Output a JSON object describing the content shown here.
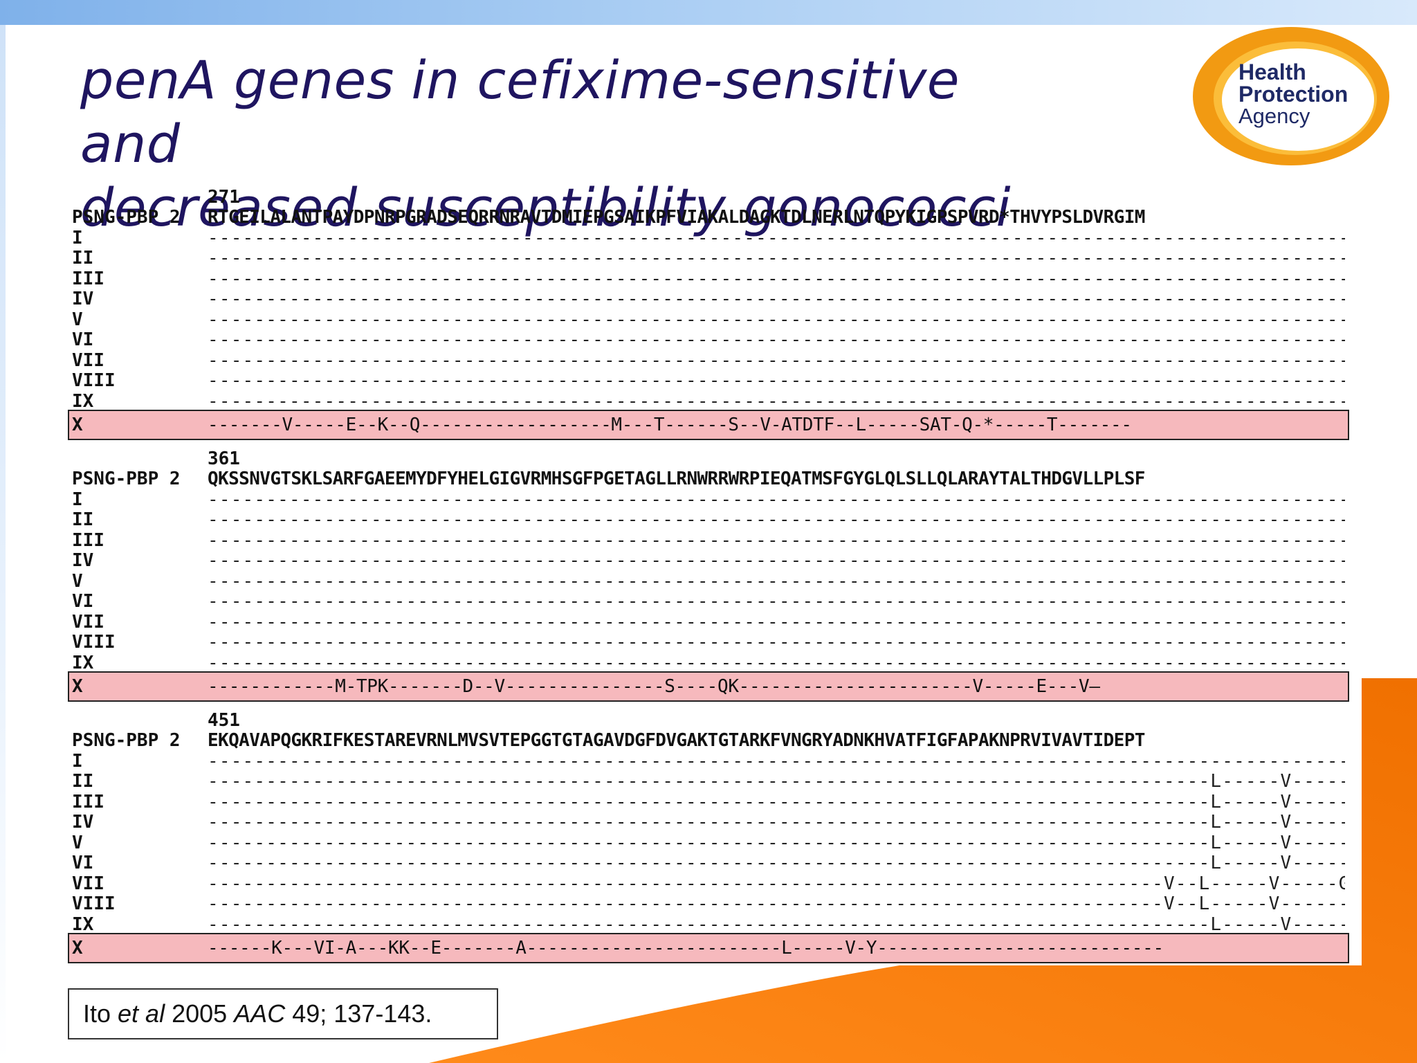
{
  "slide": {
    "title_italic": "penA",
    "title_rest": " genes in cefixime-sensitive and",
    "title_line2": "decreased susceptibility gonococci"
  },
  "logo": {
    "line1": "Health",
    "line2": "Protection",
    "line3": "Agency",
    "colors": {
      "ring": "#f29a12",
      "inner": "#ffffff",
      "text": "#1f2a66"
    }
  },
  "alignment": {
    "reference_label": "PSNG-PBP 2",
    "row_labels": [
      "I",
      "II",
      "III",
      "IV",
      "V",
      "VI",
      "VII",
      "VIII",
      "IX",
      "X"
    ],
    "highlight_color": "#f6b9bd",
    "blocks": [
      {
        "start": "271",
        "reference": "RTGEILALANTPAYDPNRPGRADSEQRRNRAVTDMIEPGSAIKPFVIAKALDAGKTDLNERLNTQPYKIGPSPVRD*THVYPSLDVRGIM",
        "variants": [
          "-----------------------------------------------------------------------------------------------------------------D--------------",
          "-----------------------------------------------------------------------------------------------------------------D--------------",
          "-----------------------------------------------------------------------------------------------------------------D--------------",
          "-----------------------------------------------------------------------------------------------------------------D--------------",
          "-----------------------------------------------------------------------------------------------------------------D--------------",
          "-----------------------------------------------------------------------------------------------------------------D--------------",
          "-----------------------------------------------------------------------------------------------------------------D--------------",
          "-----------------------------------------------------------------------------------------------------------------D--------------",
          "-----------------------------------------------------------------------------------------------------------------D--------------",
          "-------V-----E--K--Q------------------M---T------S--V-ATDTF--L-----SAT-Q-*-----T-------"
        ]
      },
      {
        "start": "361",
        "reference": "QKSSNVGTSKLSARFGAEEMYDFYHELGIGVRMHSGFPGETAGLLRNWRRWRPIEQATMSFGYGLQLSLLQLARAYTALTHDGVLLPLSF",
        "variants": [
          "----------------------------------------------------------------------------------------------------------------------------------",
          "----------------------------------------------------------------------------------------------------------------------------------",
          "----------------------------------------------------------------------------------------------------------------------------------",
          "----------------------------------------------------------------------------------------------------------------------------------",
          "----------------------------------------------------------------------------------------------------------------------------------",
          "----------------------------------------------------------------------------------------------------------------------------------",
          "----------------------------------------------------------------------------------------------------------------------------------",
          "----------------------------------------------------------------------------------------------------------------------------------",
          "----------------------------------------------------------------------------------------------------------------------------------",
          "------------M-TPK-------D--V---------------S----QK----------------------V-----E---V—"
        ]
      },
      {
        "start": "451",
        "reference": "EKQAVAPQGKRIFKESTAREVRNLMVSVTEPGGTGTAGAVDGFDVGAKTGTARKFVNGRYADNKHVATFIGFAPAKNPRVIVAVTIDEPT",
        "variants": [
          "----------------------------------------------------------------------------------------------------------------------------------",
          "--------------------------------------------------------------------------------------L-----V-----G-----------------------------",
          "--------------------------------------------------------------------------------------L-----V-----G-----------------------------",
          "--------------------------------------------------------------------------------------L-----V-----G-----------------------------",
          "--------------------------------------------------------------------------------------L-----V-----G-----------------------------",
          "--------------------------------------------------------------------------------------L-----V-----------------------------------",
          "----------------------------------------------------------------------------------V--L-----V-----G-----------------------------",
          "----------------------------------------------------------------------------------V--L-----V-----------------------------------",
          "--------------------------------------------------------------------------------------L-----V-----G-----------------------------",
          "------K---VI-A---KK--E-------A------------------------L-----V-Y---------------------------"
        ]
      }
    ]
  },
  "citation": {
    "part1": "Ito ",
    "italic1": "et al",
    "part2": " 2005 ",
    "italic2": "AAC",
    "part3": " 49; 137-143."
  }
}
